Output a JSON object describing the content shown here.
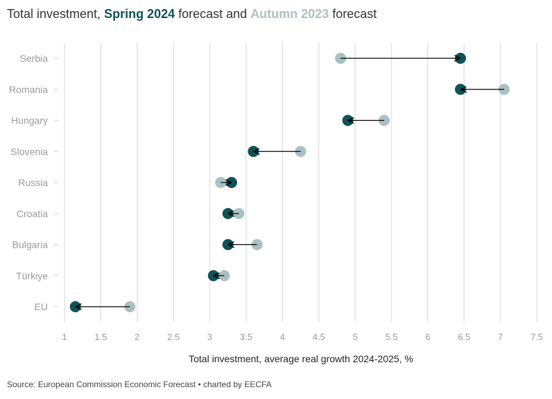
{
  "title": {
    "prefix": "Total investment, ",
    "spring_label": "Spring 2024",
    "middle": " forecast and ",
    "autumn_label": "Autumn 2023",
    "suffix": " forecast"
  },
  "source": "Source: European Commission Economic Forecast • charted by EECFA",
  "colors": {
    "spring": "#0f5257",
    "autumn": "#a9c1c3",
    "arrow": "#000000"
  },
  "chart_data": {
    "type": "dumbbell",
    "title": "Total investment, Spring 2024 forecast and Autumn 2023 forecast",
    "xlabel": "Total investment, average real growth 2024-2025, %",
    "ylabel": "",
    "xlim": [
      1,
      7.5
    ],
    "xticks": [
      1,
      1.5,
      2,
      2.5,
      3,
      3.5,
      4,
      4.5,
      5,
      5.5,
      6,
      6.5,
      7,
      7.5
    ],
    "xtick_labels": [
      "1",
      "1.5",
      "2",
      "2.5",
      "3",
      "3.5",
      "4",
      "4.5",
      "5",
      "5.5",
      "6",
      "6.5",
      "7",
      "7.5"
    ],
    "grid": true,
    "categories": [
      "Serbia",
      "Romania",
      "Hungary",
      "Slovenia",
      "Russia",
      "Croatia",
      "Bulgaria",
      "Türkiye",
      "EU"
    ],
    "series": [
      {
        "name": "Autumn 2023",
        "values": [
          4.8,
          7.05,
          5.4,
          4.25,
          3.15,
          3.4,
          3.65,
          3.2,
          1.9
        ]
      },
      {
        "name": "Spring 2024",
        "values": [
          6.45,
          6.45,
          4.9,
          3.6,
          3.3,
          3.25,
          3.25,
          3.05,
          1.15
        ]
      }
    ],
    "annotations": "Arrows point from Autumn 2023 forecast to Spring 2024 forecast"
  }
}
